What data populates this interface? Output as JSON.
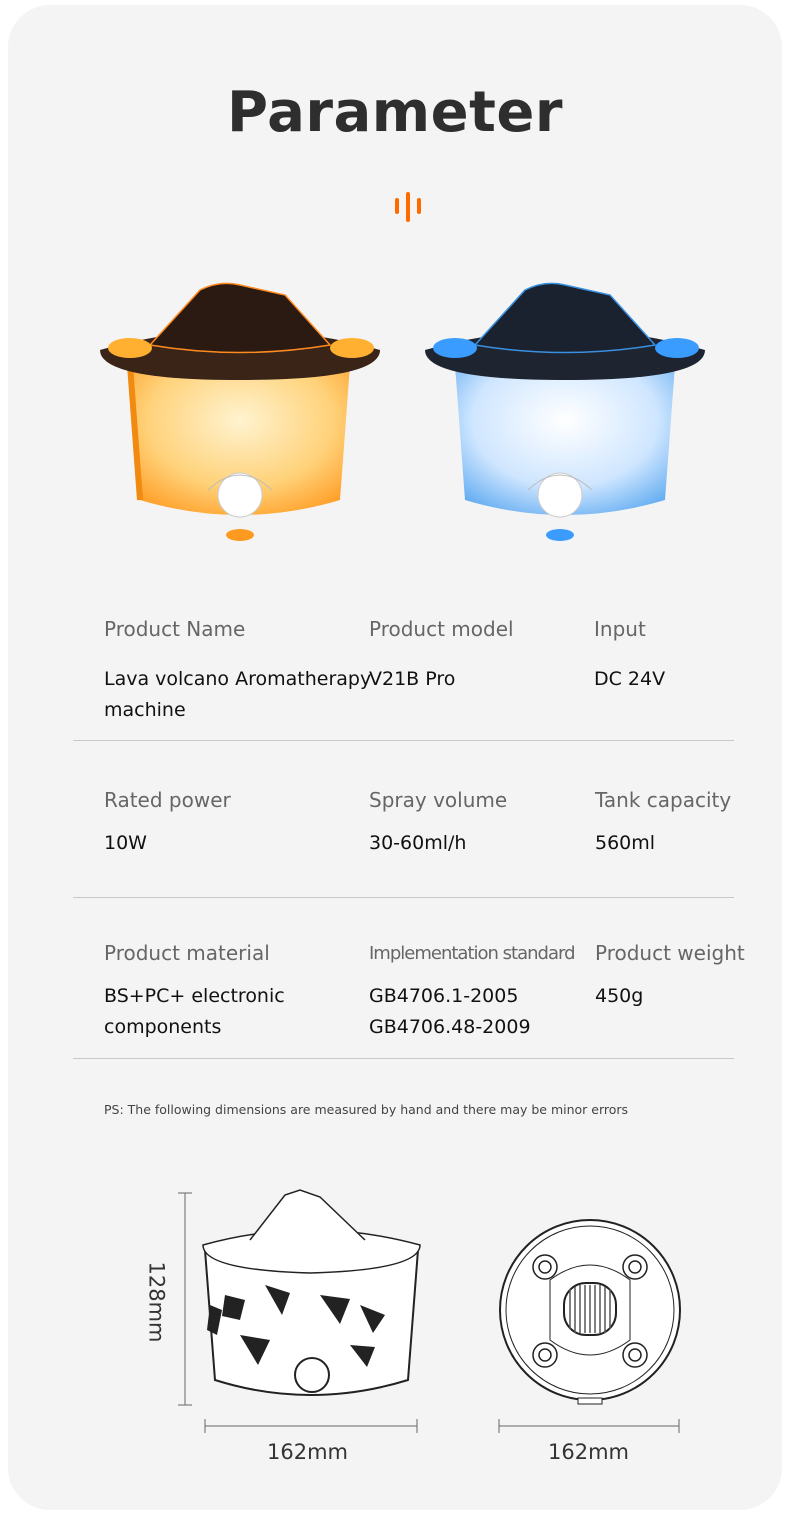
{
  "title": "Parameter",
  "accent_color": "#ff6a00",
  "header_icon": "sound-wave-icon",
  "products": [
    {
      "name": "orange-flame-volcano-diffuser",
      "glow_color": "#ffa020"
    },
    {
      "name": "blue-flame-volcano-diffuser",
      "glow_color": "#3aa0ff"
    }
  ],
  "specs": [
    [
      {
        "label": "Product Name",
        "value": [
          "Lava volcano Aromatherapy",
          "machine"
        ]
      },
      {
        "label": "Product model",
        "value": [
          "V21B Pro"
        ]
      },
      {
        "label": "Input",
        "value": [
          "DC 24V"
        ]
      }
    ],
    [
      {
        "label": "Rated power",
        "value": [
          "10W"
        ]
      },
      {
        "label": "Spray volume",
        "value": [
          "30-60ml/h"
        ]
      },
      {
        "label": "Tank capacity",
        "value": [
          "560ml"
        ]
      }
    ],
    [
      {
        "label": "Product material",
        "value": [
          "BS+PC+ electronic",
          "components"
        ]
      },
      {
        "label": "Implementation standard",
        "value": [
          "GB4706.1-2005",
          "GB4706.48-2009"
        ]
      },
      {
        "label": "Product weight",
        "value": [
          "450g"
        ]
      }
    ]
  ],
  "note": "PS: The following dimensions are measured by hand and there may be minor errors",
  "dimensions": {
    "side_height": "128mm",
    "side_width": "162mm",
    "bottom_width": "162mm"
  }
}
